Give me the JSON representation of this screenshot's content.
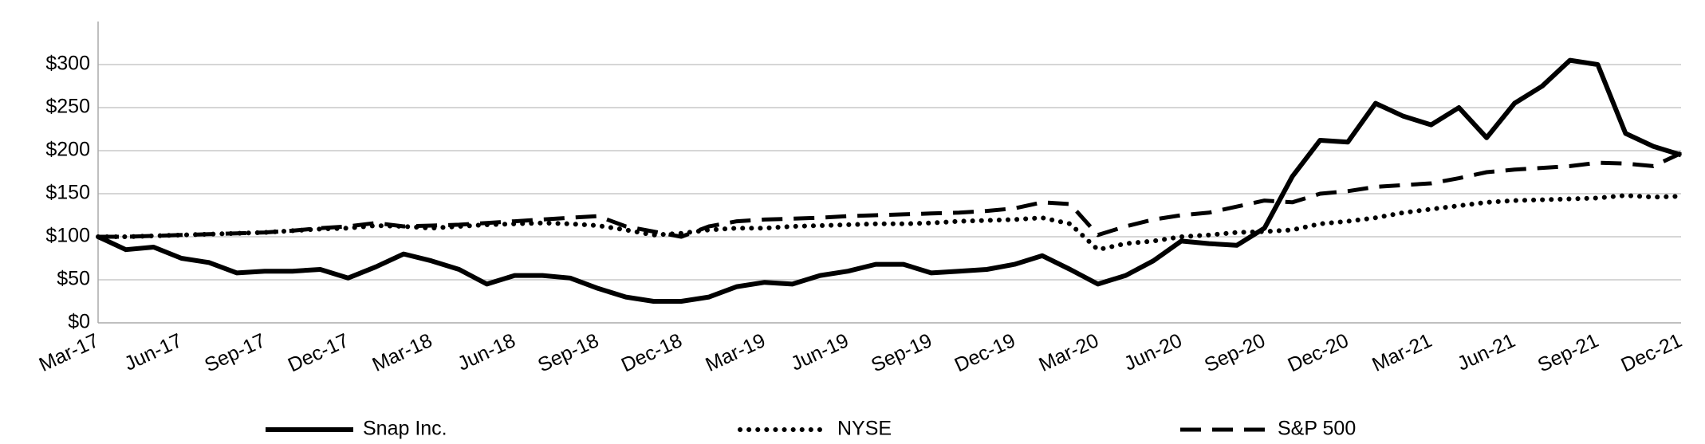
{
  "chart_data": {
    "type": "line",
    "categories": [
      "Mar-17",
      null,
      null,
      "Jun-17",
      null,
      null,
      "Sep-17",
      null,
      null,
      "Dec-17",
      null,
      null,
      "Mar-18",
      null,
      null,
      "Jun-18",
      null,
      null,
      "Sep-18",
      null,
      null,
      "Dec-18",
      null,
      null,
      "Mar-19",
      null,
      null,
      "Jun-19",
      null,
      null,
      "Sep-19",
      null,
      null,
      "Dec-19",
      null,
      null,
      "Mar-20",
      null,
      null,
      "Jun-20",
      null,
      null,
      "Sep-20",
      null,
      null,
      "Dec-20",
      null,
      null,
      "Mar-21",
      null,
      null,
      "Jun-21",
      null,
      null,
      "Sep-21",
      null,
      null,
      "Dec-21"
    ],
    "series": [
      {
        "name": "Snap Inc.",
        "color": "#000000",
        "dash": "solid",
        "values": [
          100,
          85,
          88,
          75,
          70,
          58,
          60,
          60,
          62,
          52,
          65,
          80,
          72,
          62,
          45,
          55,
          55,
          52,
          40,
          30,
          25,
          25,
          30,
          42,
          47,
          45,
          55,
          60,
          68,
          68,
          58,
          60,
          62,
          68,
          78,
          62,
          45,
          55,
          72,
          95,
          92,
          90,
          110,
          170,
          212,
          210,
          255,
          240,
          230,
          250,
          215,
          255,
          275,
          305,
          300,
          220,
          205,
          195
        ]
      },
      {
        "name": "NYSE",
        "color": "#000000",
        "dash": "dotted",
        "values": [
          100,
          100,
          101,
          102,
          103,
          104,
          105,
          107,
          109,
          110,
          113,
          112,
          110,
          112,
          114,
          115,
          116,
          115,
          113,
          108,
          102,
          104,
          108,
          110,
          110,
          112,
          113,
          114,
          115,
          115,
          116,
          118,
          119,
          120,
          122,
          115,
          85,
          92,
          95,
          100,
          102,
          105,
          106,
          108,
          115,
          118,
          122,
          128,
          132,
          136,
          140,
          142,
          143,
          144,
          145,
          148,
          146,
          147
        ]
      },
      {
        "name": "S&P 500",
        "color": "#000000",
        "dash": "dashed",
        "values": [
          100,
          100,
          101,
          102,
          103,
          104,
          105,
          107,
          110,
          112,
          116,
          112,
          113,
          114,
          116,
          118,
          120,
          122,
          124,
          112,
          106,
          100,
          112,
          118,
          120,
          121,
          122,
          124,
          125,
          126,
          127,
          128,
          130,
          133,
          140,
          138,
          102,
          112,
          120,
          125,
          128,
          135,
          142,
          140,
          150,
          153,
          158,
          160,
          162,
          168,
          175,
          178,
          180,
          182,
          186,
          185,
          182,
          197
        ]
      }
    ],
    "ylim": [
      0,
      350
    ],
    "yticks": [
      {
        "value": 0,
        "label": "$0"
      },
      {
        "value": 50,
        "label": "$50"
      },
      {
        "value": 100,
        "label": "$100"
      },
      {
        "value": 150,
        "label": "$150"
      },
      {
        "value": 200,
        "label": "$200"
      },
      {
        "value": 250,
        "label": "$250"
      },
      {
        "value": 300,
        "label": "$300"
      }
    ],
    "grid": true
  }
}
